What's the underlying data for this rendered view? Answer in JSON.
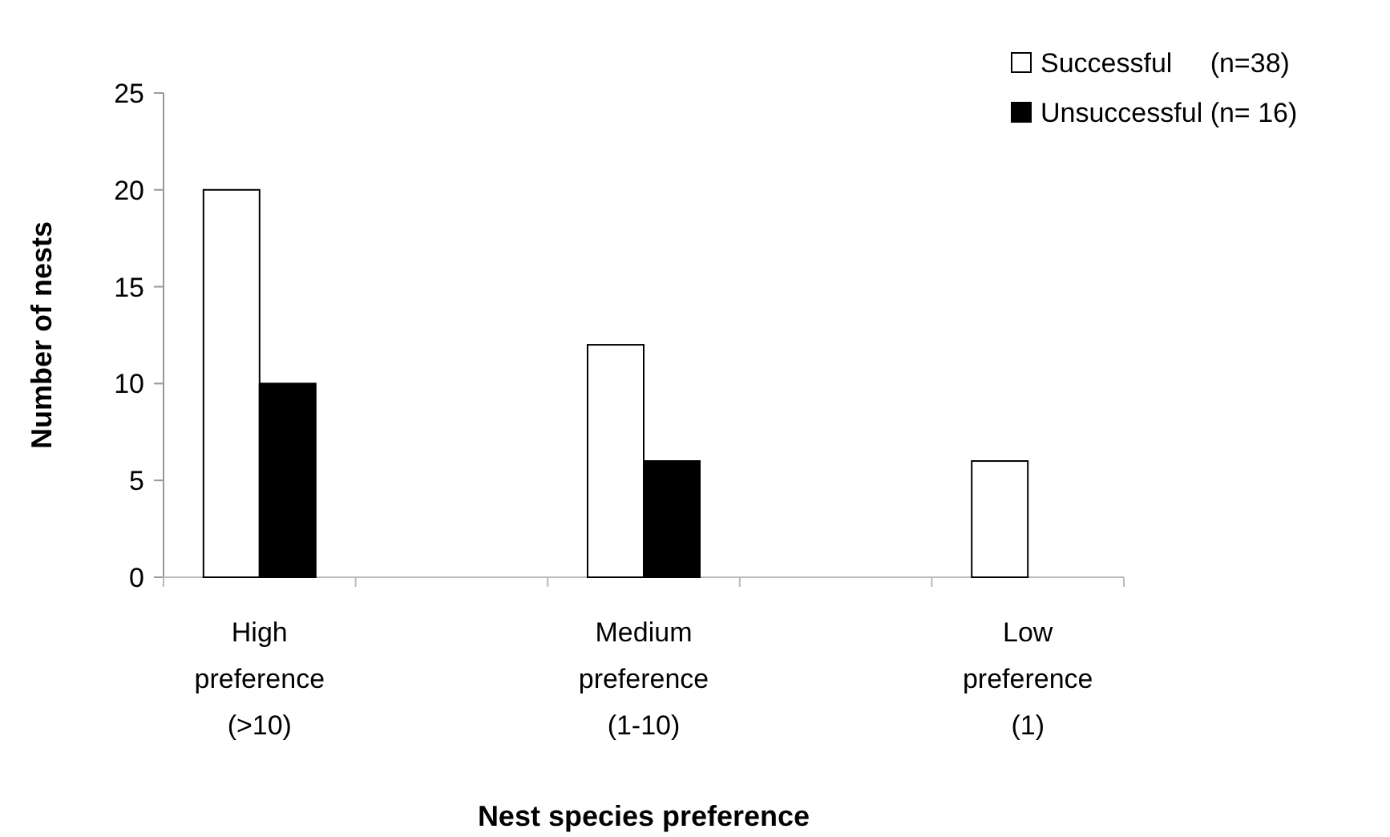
{
  "chart_data": {
    "type": "bar",
    "xlabel": "Nest species preference",
    "ylabel": "Number of nests",
    "categories": [
      "High\npreference\n(>10)",
      "Medium\npreference\n(1-10)",
      "Low\npreference\n(1)"
    ],
    "series": [
      {
        "name": "Successful     (n=38)",
        "color": "#ffffff",
        "values": [
          20,
          12,
          6
        ]
      },
      {
        "name": "Unsuccessful (n= 16)",
        "color": "#000000",
        "values": [
          10,
          6,
          0
        ]
      }
    ],
    "ylim": [
      0,
      25
    ],
    "yticks": [
      0,
      5,
      10,
      15,
      20,
      25
    ],
    "grid": false,
    "legend": "top right"
  }
}
